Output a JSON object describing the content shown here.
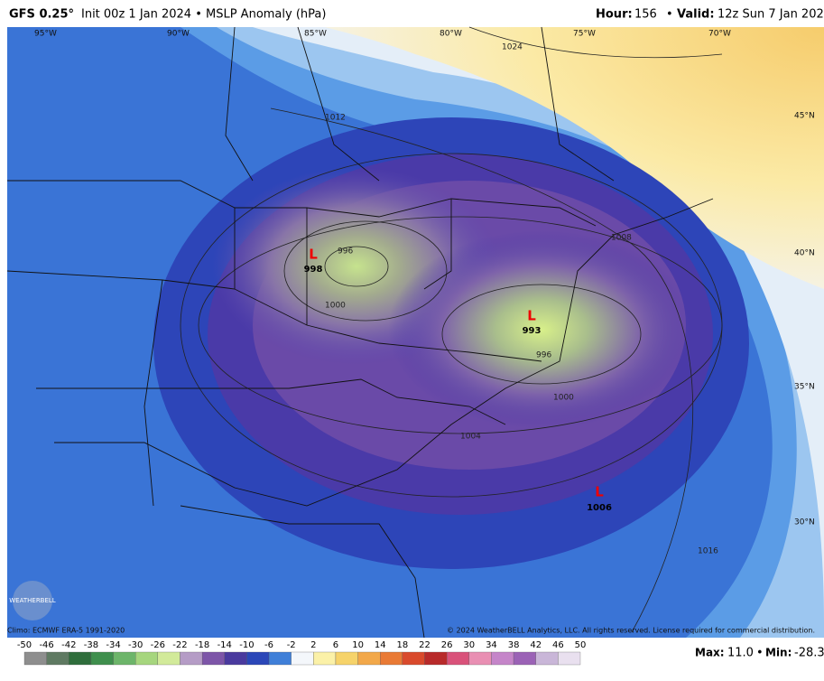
{
  "header": {
    "model": "GFS 0.25°",
    "description": "Init 00z 1 Jan 2024 • MSLP Anomaly (hPa)",
    "hour_label": "Hour:",
    "hour": "156",
    "valid_label": "Valid:",
    "valid": "12z Sun 7 Jan 2024"
  },
  "map": {
    "longitudes": [
      "95°W",
      "90°W",
      "85°W",
      "80°W",
      "75°W",
      "70°W"
    ],
    "latitudes": [
      "45°N",
      "40°N",
      "35°N",
      "30°N"
    ],
    "isobars": [
      "1024",
      "1012",
      "1008",
      "996",
      "1000",
      "996",
      "1000",
      "1004",
      "1016"
    ],
    "lows": [
      {
        "symbol": "L",
        "pressure": "998"
      },
      {
        "symbol": "L",
        "pressure": "993"
      },
      {
        "symbol": "L",
        "pressure": "1006"
      }
    ],
    "logo": "WEATHERBELL"
  },
  "footer": {
    "climo": "Climo: ECMWF ERA-5 1991-2020",
    "copyright": "© 2024 WeatherBELL Analytics, LLC. All rights reserved. License required for commercial distribution.",
    "max_label": "Max:",
    "max": "11.0",
    "min_label": "Min:",
    "min": "-28.3"
  },
  "colorbar": {
    "ticks": [
      -50,
      -46,
      -42,
      -38,
      -34,
      -30,
      -26,
      -22,
      -18,
      -14,
      -10,
      -6,
      -2,
      2,
      6,
      10,
      14,
      18,
      22,
      26,
      30,
      34,
      38,
      42,
      46,
      50
    ],
    "colors": [
      "#8e8e8e",
      "#5f7a62",
      "#2f6e3c",
      "#3f8f4d",
      "#6db56a",
      "#a6d67e",
      "#d2ea9a",
      "#b59cc6",
      "#7d55a8",
      "#4a3a9e",
      "#2b47b8",
      "#3f7fd8",
      "#f4f7fb",
      "#fbf1a8",
      "#f6d36a",
      "#f2a84a",
      "#e97a35",
      "#d94a2c",
      "#b82a2a",
      "#d9527a",
      "#e98fb3",
      "#c585c9",
      "#9b62b6",
      "#c9b6d8",
      "#e9e0ef"
    ]
  }
}
